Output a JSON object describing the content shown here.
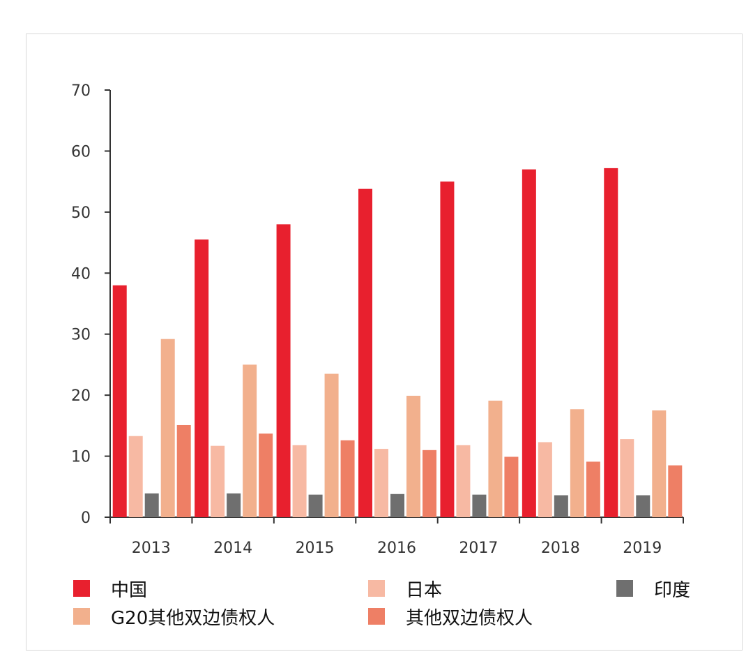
{
  "chart_data": {
    "type": "bar",
    "categories": [
      "2013",
      "2014",
      "2015",
      "2016",
      "2017",
      "2018",
      "2019"
    ],
    "ylim": [
      0,
      70
    ],
    "yticks": [
      0,
      10,
      20,
      30,
      40,
      50,
      60,
      70
    ],
    "grid": false,
    "legend_position": "bottom",
    "series": [
      {
        "name": "中国",
        "color": "#e8202e",
        "values": [
          38.0,
          45.5,
          48.0,
          53.8,
          55.0,
          57.0,
          57.2
        ]
      },
      {
        "name": "日本",
        "color": "#f7b9a3",
        "values": [
          13.3,
          11.7,
          11.8,
          11.2,
          11.8,
          12.3,
          12.8
        ]
      },
      {
        "name": "G20其他双边债权人",
        "color": "#f2b08d",
        "values": [
          29.2,
          25.0,
          23.5,
          19.9,
          19.1,
          17.7,
          17.5
        ]
      },
      {
        "name": "其他双边债权人",
        "color": "#ee7f65",
        "values": [
          15.1,
          13.7,
          12.6,
          11.0,
          9.9,
          9.1,
          8.5
        ]
      },
      {
        "name": "印度",
        "color": "#6f6f6f",
        "values": [
          3.9,
          3.9,
          3.7,
          3.8,
          3.7,
          3.6,
          3.6
        ]
      }
    ]
  }
}
